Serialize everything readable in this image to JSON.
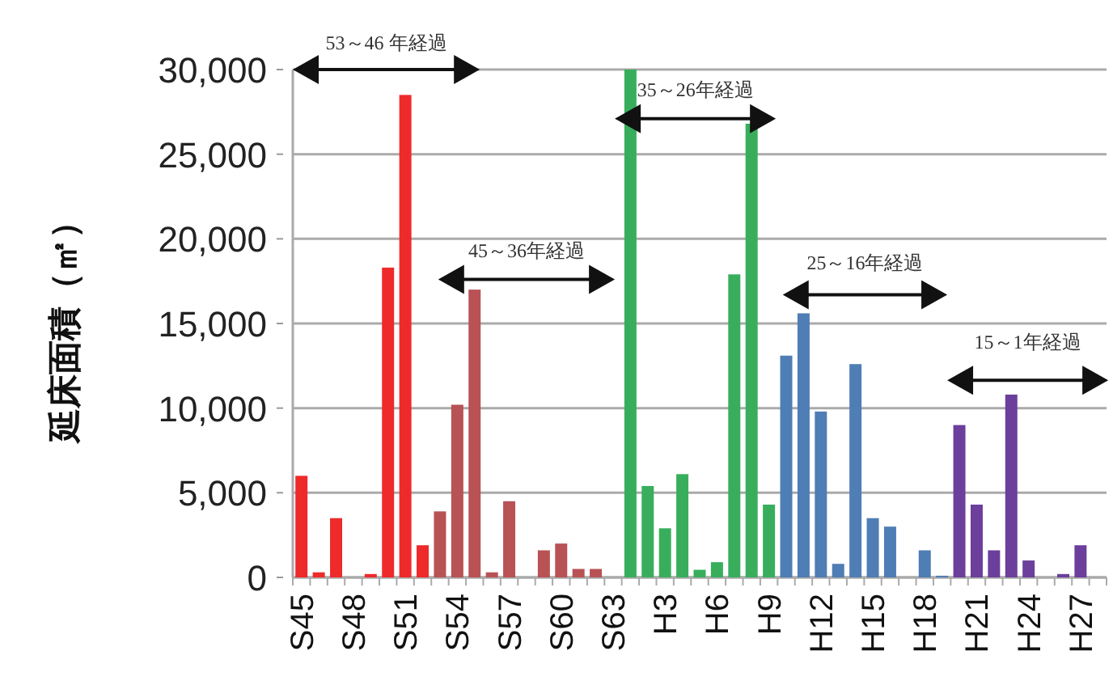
{
  "chart_data": {
    "type": "bar",
    "ylabel": "延床面積（㎡）",
    "categories": [
      "S45",
      null,
      null,
      "S48",
      null,
      null,
      "S51",
      null,
      null,
      "S54",
      null,
      null,
      "S57",
      null,
      null,
      "S60",
      null,
      null,
      "S63",
      null,
      null,
      "H3",
      null,
      null,
      "H6",
      null,
      null,
      "H9",
      null,
      null,
      "H12",
      null,
      null,
      "H15",
      null,
      null,
      "H18",
      null,
      null,
      "H21",
      null,
      null,
      "H24",
      null,
      null,
      "H27"
    ],
    "values": [
      6000,
      300,
      3500,
      0,
      200,
      18300,
      28500,
      1900,
      3900,
      10200,
      17000,
      300,
      4500,
      0,
      1600,
      2000,
      500,
      500,
      0,
      30000,
      5400,
      2900,
      6100,
      450,
      900,
      17900,
      26800,
      4300,
      13100,
      15600,
      9800,
      800,
      12600,
      3500,
      3000,
      0,
      1600,
      100,
      9000,
      4300,
      1600,
      10800,
      1000,
      0,
      200,
      1900
    ],
    "colors": [
      "#ee2a2a",
      "#ee2a2a",
      "#ee2a2a",
      "#ee2a2a",
      "#ee2a2a",
      "#ee2a2a",
      "#ee2a2a",
      "#ee2a2a",
      "#b85255",
      "#b85255",
      "#b85255",
      "#b85255",
      "#b85255",
      "#b85255",
      "#b85255",
      "#b85255",
      "#b85255",
      "#b85255",
      "#b85255",
      "#38ae5c",
      "#38ae5c",
      "#38ae5c",
      "#38ae5c",
      "#38ae5c",
      "#38ae5c",
      "#38ae5c",
      "#38ae5c",
      "#38ae5c",
      "#4f7db5",
      "#4f7db5",
      "#4f7db5",
      "#4f7db5",
      "#4f7db5",
      "#4f7db5",
      "#4f7db5",
      "#4f7db5",
      "#4f7db5",
      "#4f7db5",
      "#6b3f9b",
      "#6b3f9b",
      "#6b3f9b",
      "#6b3f9b",
      "#6b3f9b",
      "#6b3f9b",
      "#6b3f9b",
      "#6b3f9b"
    ],
    "ylim": [
      0,
      30000
    ],
    "yticks": [
      0,
      {
        "value": 5000,
        "label": "5,000"
      },
      {
        "value": 10000,
        "label": "10,000"
      },
      {
        "value": 15000,
        "label": "15,000"
      },
      {
        "value": 20000,
        "label": "20,000"
      },
      {
        "value": 25000,
        "label": "25,000"
      },
      {
        "value": 30000,
        "label": "30,000"
      }
    ],
    "grid": "y",
    "annotations": [
      "53～46 年経過",
      "45～36年経過",
      "35～26年経過",
      "25～16年経過",
      "15～1年経過"
    ]
  }
}
